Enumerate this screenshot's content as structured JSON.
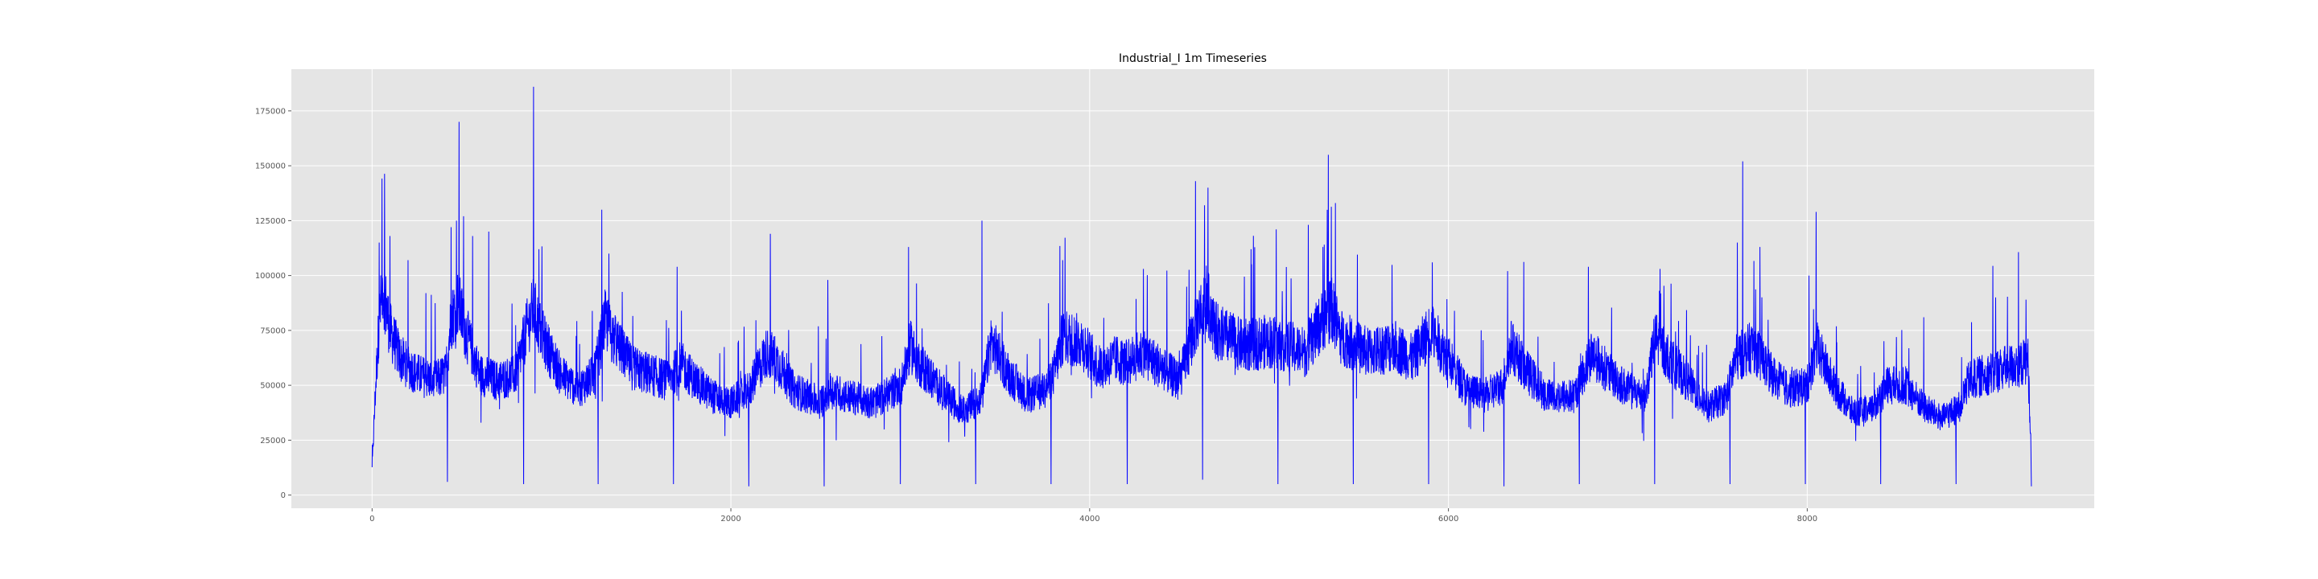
{
  "chart_data": {
    "type": "line",
    "title": "Industrial_I 1m Timeseries",
    "xlabel": "",
    "ylabel": "",
    "xlim": [
      -450,
      9600
    ],
    "ylim": [
      -6000,
      194000
    ],
    "x_ticks": [
      0,
      2000,
      4000,
      6000,
      8000
    ],
    "y_ticks": [
      0,
      25000,
      50000,
      75000,
      100000,
      125000,
      150000,
      175000
    ],
    "grid": true,
    "legend": "none",
    "colors": {
      "series": "#0000ff",
      "plot_background": "#e5e5e5",
      "grid": "#ffffff"
    },
    "series": [
      {
        "color": "#0000ff",
        "x_range": [
          0,
          9250
        ],
        "baseline_points": [
          [
            0,
            12000
          ],
          [
            20,
            50000
          ],
          [
            40,
            80000
          ],
          [
            60,
            95000
          ],
          [
            100,
            75000
          ],
          [
            160,
            62000
          ],
          [
            250,
            55000
          ],
          [
            350,
            52000
          ],
          [
            410,
            55000
          ],
          [
            440,
            80000
          ],
          [
            480,
            88000
          ],
          [
            520,
            75000
          ],
          [
            600,
            55000
          ],
          [
            700,
            52000
          ],
          [
            800,
            55000
          ],
          [
            860,
            75000
          ],
          [
            900,
            85000
          ],
          [
            950,
            72000
          ],
          [
            1050,
            55000
          ],
          [
            1150,
            48000
          ],
          [
            1240,
            55000
          ],
          [
            1300,
            80000
          ],
          [
            1340,
            72000
          ],
          [
            1450,
            58000
          ],
          [
            1550,
            55000
          ],
          [
            1650,
            52000
          ],
          [
            1720,
            60000
          ],
          [
            1800,
            52000
          ],
          [
            1900,
            45000
          ],
          [
            2000,
            42000
          ],
          [
            2100,
            48000
          ],
          [
            2200,
            65000
          ],
          [
            2250,
            62000
          ],
          [
            2350,
            48000
          ],
          [
            2500,
            42000
          ],
          [
            2550,
            48000
          ],
          [
            2650,
            45000
          ],
          [
            2800,
            42000
          ],
          [
            2950,
            50000
          ],
          [
            3000,
            68000
          ],
          [
            3050,
            60000
          ],
          [
            3200,
            45000
          ],
          [
            3300,
            38000
          ],
          [
            3400,
            45000
          ],
          [
            3450,
            70000
          ],
          [
            3550,
            55000
          ],
          [
            3650,
            45000
          ],
          [
            3750,
            48000
          ],
          [
            3800,
            55000
          ],
          [
            3850,
            72000
          ],
          [
            3950,
            70000
          ],
          [
            4050,
            58000
          ],
          [
            4150,
            62000
          ],
          [
            4200,
            60000
          ],
          [
            4300,
            65000
          ],
          [
            4400,
            58000
          ],
          [
            4500,
            52000
          ],
          [
            4600,
            80000
          ],
          [
            4650,
            90000
          ],
          [
            4700,
            75000
          ],
          [
            4850,
            68000
          ],
          [
            5000,
            70000
          ],
          [
            5100,
            68000
          ],
          [
            5200,
            65000
          ],
          [
            5300,
            80000
          ],
          [
            5350,
            85000
          ],
          [
            5400,
            72000
          ],
          [
            5550,
            65000
          ],
          [
            5700,
            68000
          ],
          [
            5800,
            62000
          ],
          [
            5900,
            75000
          ],
          [
            6000,
            62000
          ],
          [
            6100,
            48000
          ],
          [
            6200,
            45000
          ],
          [
            6300,
            50000
          ],
          [
            6350,
            68000
          ],
          [
            6450,
            55000
          ],
          [
            6550,
            45000
          ],
          [
            6700,
            45000
          ],
          [
            6800,
            65000
          ],
          [
            6900,
            55000
          ],
          [
            7000,
            48000
          ],
          [
            7100,
            45000
          ],
          [
            7150,
            72000
          ],
          [
            7250,
            60000
          ],
          [
            7350,
            50000
          ],
          [
            7450,
            40000
          ],
          [
            7550,
            45000
          ],
          [
            7600,
            62000
          ],
          [
            7700,
            68000
          ],
          [
            7800,
            55000
          ],
          [
            7900,
            48000
          ],
          [
            8000,
            50000
          ],
          [
            8050,
            68000
          ],
          [
            8150,
            50000
          ],
          [
            8250,
            38000
          ],
          [
            8350,
            38000
          ],
          [
            8450,
            50000
          ],
          [
            8550,
            50000
          ],
          [
            8650,
            40000
          ],
          [
            8750,
            35000
          ],
          [
            8850,
            40000
          ],
          [
            8900,
            52000
          ],
          [
            9000,
            55000
          ],
          [
            9100,
            58000
          ],
          [
            9200,
            60000
          ],
          [
            9230,
            62000
          ],
          [
            9250,
            18000
          ]
        ],
        "dips": [
          [
            420,
            6000
          ],
          [
            845,
            5000
          ],
          [
            1260,
            5000
          ],
          [
            1680,
            5000
          ],
          [
            2100,
            4000
          ],
          [
            2520,
            4000
          ],
          [
            2945,
            5000
          ],
          [
            3365,
            5000
          ],
          [
            3785,
            5000
          ],
          [
            4210,
            5000
          ],
          [
            4630,
            7000
          ],
          [
            5050,
            5000
          ],
          [
            5470,
            5000
          ],
          [
            5890,
            5000
          ],
          [
            6310,
            4000
          ],
          [
            6730,
            5000
          ],
          [
            7150,
            5000
          ],
          [
            7570,
            5000
          ],
          [
            7990,
            5000
          ],
          [
            8410,
            5000
          ],
          [
            8830,
            5000
          ],
          [
            9250,
            4000
          ]
        ],
        "peaks": [
          [
            40,
            115000
          ],
          [
            100,
            118000
          ],
          [
            200,
            107000
          ],
          [
            300,
            92000
          ],
          [
            440,
            122000
          ],
          [
            470,
            125000
          ],
          [
            485,
            170000
          ],
          [
            510,
            127000
          ],
          [
            560,
            118000
          ],
          [
            650,
            120000
          ],
          [
            900,
            186000
          ],
          [
            930,
            112000
          ],
          [
            1280,
            130000
          ],
          [
            1320,
            110000
          ],
          [
            1700,
            104000
          ],
          [
            2220,
            119000
          ],
          [
            2540,
            98000
          ],
          [
            2990,
            113000
          ],
          [
            3400,
            125000
          ],
          [
            3850,
            107000
          ],
          [
            4300,
            103000
          ],
          [
            4590,
            143000
          ],
          [
            4640,
            132000
          ],
          [
            4660,
            140000
          ],
          [
            4900,
            112000
          ],
          [
            5040,
            121000
          ],
          [
            5300,
            113000
          ],
          [
            5330,
            155000
          ],
          [
            5370,
            133000
          ],
          [
            5910,
            106000
          ],
          [
            6330,
            102000
          ],
          [
            6780,
            104000
          ],
          [
            7180,
            103000
          ],
          [
            7610,
            115000
          ],
          [
            7640,
            152000
          ],
          [
            8010,
            100000
          ],
          [
            8050,
            129000
          ],
          [
            8650,
            81000
          ],
          [
            9050,
            90000
          ],
          [
            9220,
            89000
          ]
        ]
      }
    ]
  }
}
